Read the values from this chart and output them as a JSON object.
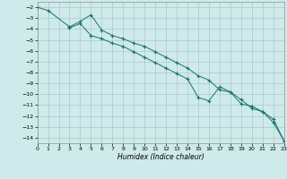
{
  "xlabel": "Humidex (Indice chaleur)",
  "background_color": "#ceeaea",
  "grid_color": "#aec8c8",
  "line_color": "#1a7070",
  "xlim": [
    0,
    23
  ],
  "ylim": [
    -14.5,
    -1.5
  ],
  "yticks": [
    -2,
    -3,
    -4,
    -5,
    -6,
    -7,
    -8,
    -9,
    -10,
    -11,
    -12,
    -13,
    -14
  ],
  "xticks": [
    0,
    1,
    2,
    3,
    4,
    5,
    6,
    7,
    8,
    9,
    10,
    11,
    12,
    13,
    14,
    15,
    16,
    17,
    18,
    19,
    20,
    21,
    22,
    23
  ],
  "series1_x": [
    0,
    1,
    3,
    4,
    5,
    6,
    7,
    8,
    9,
    10,
    11,
    12,
    13,
    14,
    15,
    16,
    17,
    18,
    19,
    20,
    21,
    22,
    23
  ],
  "series1_y": [
    -2.0,
    -2.3,
    -3.8,
    -3.3,
    -2.7,
    -4.1,
    -4.6,
    -4.9,
    -5.3,
    -5.6,
    -6.1,
    -6.6,
    -7.1,
    -7.6,
    -8.3,
    -8.7,
    -9.6,
    -9.8,
    -10.5,
    -11.3,
    -11.6,
    -12.3,
    -14.3
  ],
  "series2_x": [
    3,
    4,
    5,
    6,
    7,
    8,
    9,
    10,
    11,
    12,
    13,
    14,
    15,
    16,
    17,
    18,
    19,
    20,
    21,
    22,
    23
  ],
  "series2_y": [
    -3.9,
    -3.5,
    -4.6,
    -4.9,
    -5.3,
    -5.6,
    -6.1,
    -6.6,
    -7.1,
    -7.6,
    -8.1,
    -8.6,
    -10.3,
    -10.6,
    -9.3,
    -9.8,
    -10.9,
    -11.1,
    -11.6,
    -12.6,
    -14.3
  ]
}
